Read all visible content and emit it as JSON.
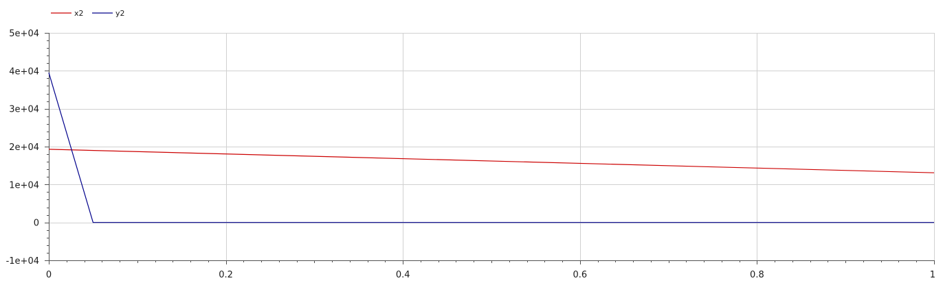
{
  "chart_data": {
    "type": "line",
    "xlabel": "",
    "ylabel": "",
    "xlim": [
      0,
      1
    ],
    "ylim": [
      -10000,
      50000
    ],
    "grid": true,
    "legend_position": "top-left",
    "x_ticks": [
      0,
      0.2,
      0.4,
      0.6,
      0.8,
      1
    ],
    "x_tick_labels": [
      "0",
      "0.2",
      "0.4",
      "0.6",
      "0.8",
      "1"
    ],
    "y_ticks": [
      -10000,
      0,
      10000,
      20000,
      30000,
      40000,
      50000
    ],
    "y_tick_labels": [
      "-1e+04",
      "0",
      "1e+04",
      "2e+04",
      "3e+04",
      "4e+04",
      "5e+04"
    ],
    "series": [
      {
        "name": "x2",
        "color": "#cc0000",
        "x": [
          0,
          1
        ],
        "y": [
          19300,
          13100
        ]
      },
      {
        "name": "y2",
        "color": "#00008b",
        "x": [
          0,
          0.05,
          1
        ],
        "y": [
          39500,
          0,
          0
        ]
      }
    ]
  }
}
